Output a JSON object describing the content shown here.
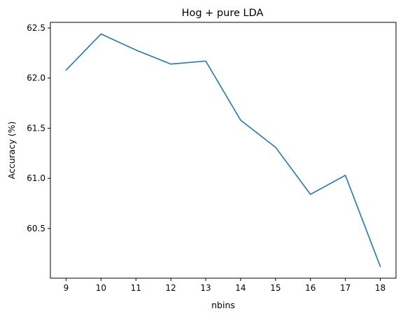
{
  "chart_data": {
    "type": "line",
    "title": "Hog + pure LDA",
    "xlabel": "nbins",
    "ylabel": "Accuracy (%)",
    "x": [
      9,
      10,
      11,
      12,
      13,
      14,
      15,
      16,
      17,
      18
    ],
    "series": [
      {
        "values": [
          62.08,
          62.44,
          62.28,
          62.14,
          62.17,
          61.58,
          61.31,
          60.84,
          61.03,
          60.12
        ],
        "color": "#1f77b4"
      }
    ],
    "xticks": [
      9,
      10,
      11,
      12,
      13,
      14,
      15,
      16,
      17,
      18
    ],
    "xtick_labels": [
      "9",
      "10",
      "11",
      "12",
      "13",
      "14",
      "15",
      "16",
      "17",
      "18"
    ],
    "yticks": [
      60.5,
      61.0,
      61.5,
      62.0,
      62.5
    ],
    "ytick_labels": [
      "60.5",
      "61.0",
      "61.5",
      "62.0",
      "62.5"
    ],
    "xlim": [
      8.55,
      18.45
    ],
    "ylim": [
      60.004,
      62.556
    ],
    "grid": false,
    "legend": "none"
  }
}
